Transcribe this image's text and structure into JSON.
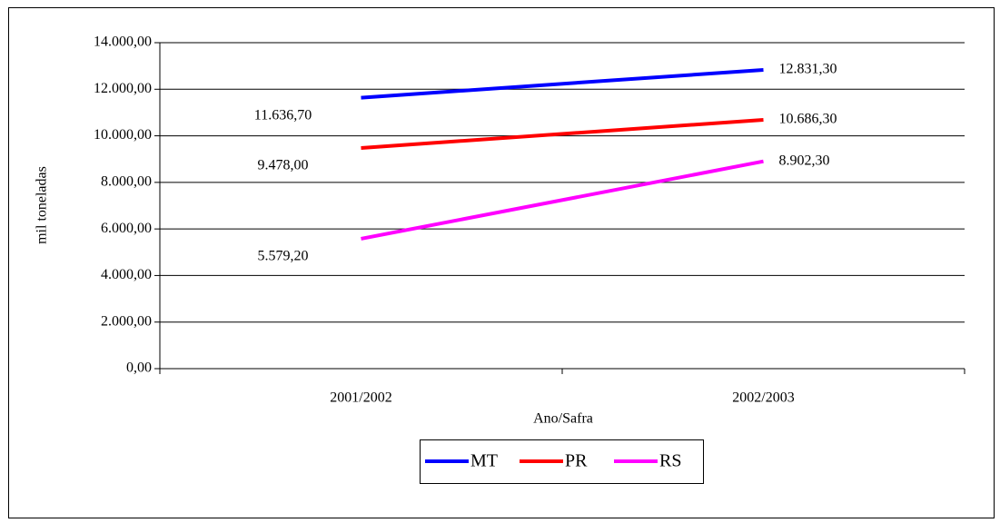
{
  "chart_data": {
    "type": "line",
    "x_label": "Ano/Safra",
    "y_label": "mil toneladas",
    "categories": [
      "2001/2002",
      "2002/2003"
    ],
    "series": [
      {
        "name": "MT",
        "color": "#0000ff",
        "values": [
          11636.7,
          12831.3
        ],
        "value_labels": [
          "11.636,70",
          "12.831,30"
        ]
      },
      {
        "name": "PR",
        "color": "#ff0000",
        "values": [
          9478.0,
          10686.3
        ],
        "value_labels": [
          "9.478,00",
          "10.686,30"
        ]
      },
      {
        "name": "RS",
        "color": "#ff00ff",
        "values": [
          5579.2,
          8902.3
        ],
        "value_labels": [
          "5.579,20",
          "8.902,30"
        ]
      }
    ],
    "ylim": [
      0,
      14000
    ],
    "yticks": [
      {
        "value": 0,
        "label": "0,00"
      },
      {
        "value": 2000,
        "label": "2.000,00"
      },
      {
        "value": 4000,
        "label": "4.000,00"
      },
      {
        "value": 6000,
        "label": "6.000,00"
      },
      {
        "value": 8000,
        "label": "8.000,00"
      },
      {
        "value": 10000,
        "label": "10.000,00"
      },
      {
        "value": 12000,
        "label": "12.000,00"
      },
      {
        "value": 14000,
        "label": "14.000,00"
      }
    ],
    "grid": true,
    "legend": "bottom"
  }
}
